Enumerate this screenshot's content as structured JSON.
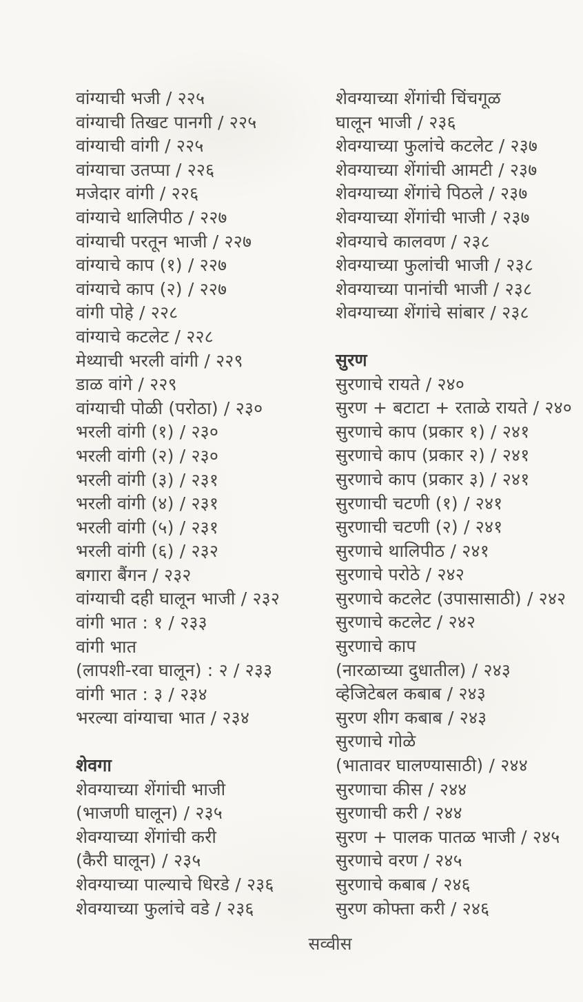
{
  "document": {
    "footer": "सव्वीस",
    "columns": [
      {
        "name": "left",
        "lines": [
          {
            "type": "entry",
            "text": "वांग्याची भजी / २२५"
          },
          {
            "type": "entry",
            "text": "वांग्याची तिखट पानगी / २२५"
          },
          {
            "type": "entry",
            "text": "वांग्याची वांगी / २२५"
          },
          {
            "type": "entry",
            "text": "वांग्याचा उतप्पा / २२६"
          },
          {
            "type": "entry",
            "text": "मजेदार वांगी / २२६"
          },
          {
            "type": "entry",
            "text": "वांग्याचे थालिपीठ / २२७"
          },
          {
            "type": "entry",
            "text": "वांग्याची परतून भाजी / २२७"
          },
          {
            "type": "entry",
            "text": "वांग्याचे काप (१) / २२७"
          },
          {
            "type": "entry",
            "text": "वांग्याचे काप (२) / २२७"
          },
          {
            "type": "entry",
            "text": "वांगी पोहे / २२८"
          },
          {
            "type": "entry",
            "text": "वांग्याचे कटलेट / २२८"
          },
          {
            "type": "entry",
            "text": "मेथ्याची भरली वांगी / २२९"
          },
          {
            "type": "entry",
            "text": "डाळ वांगे / २२९"
          },
          {
            "type": "entry",
            "text": "वांग्याची पोळी (परोठा) / २३०"
          },
          {
            "type": "entry",
            "text": "भरली वांगी (१) / २३०"
          },
          {
            "type": "entry",
            "text": "भरली वांगी (२) / २३०"
          },
          {
            "type": "entry",
            "text": "भरली वांगी (३) / २३१"
          },
          {
            "type": "entry",
            "text": "भरली वांगी (४) / २३१"
          },
          {
            "type": "entry",
            "text": "भरली वांगी (५) / २३१"
          },
          {
            "type": "entry",
            "text": "भरली वांगी (६) / २३२"
          },
          {
            "type": "entry",
            "text": "बगारा बैंगन / २३२"
          },
          {
            "type": "entry",
            "text": "वांग्याची दही घालून भाजी / २३२"
          },
          {
            "type": "entry",
            "text": "वांगी भात : १ / २३३"
          },
          {
            "type": "entry",
            "text": "वांगी भात"
          },
          {
            "type": "entry",
            "text": "(लापशी-रवा घालून) : २ / २३३"
          },
          {
            "type": "entry",
            "text": "वांगी भात : ३ / २३४"
          },
          {
            "type": "entry",
            "text": "भरल्या वांग्याचा भात / २३४"
          },
          {
            "type": "gap",
            "text": ""
          },
          {
            "type": "heading",
            "text": "शेवगा"
          },
          {
            "type": "entry",
            "text": "शेवग्याच्या शेंगांची भाजी"
          },
          {
            "type": "entry",
            "text": "(भाजणी घालून) / २३५"
          },
          {
            "type": "entry",
            "text": "शेवग्याच्या शेंगांची करी"
          },
          {
            "type": "entry",
            "text": "(कैरी घालून) / २३५"
          },
          {
            "type": "entry",
            "text": "शेवग्याच्या पाल्याचे धिरडे / २३६"
          },
          {
            "type": "entry",
            "text": "शेवग्याच्या फुलांचे वडे / २३६"
          }
        ]
      },
      {
        "name": "right",
        "lines": [
          {
            "type": "entry",
            "text": "शेवग्याच्या शेंगांची चिंचगूळ"
          },
          {
            "type": "entry",
            "text": "घालून भाजी / २३६"
          },
          {
            "type": "entry",
            "text": "शेवग्याच्या फुलांचे कटलेट / २३७"
          },
          {
            "type": "entry",
            "text": "शेवग्याच्या शेंगांची आमटी / २३७"
          },
          {
            "type": "entry",
            "text": "शेवग्याच्या शेंगांचे पिठले / २३७"
          },
          {
            "type": "entry",
            "text": "शेवग्याच्या शेंगांची भाजी / २३७"
          },
          {
            "type": "entry",
            "text": "शेवग्याचे कालवण / २३८"
          },
          {
            "type": "entry",
            "text": "शेवग्याच्या फुलांची भाजी / २३८"
          },
          {
            "type": "entry",
            "text": "शेवग्याच्या पानांची भाजी / २३८"
          },
          {
            "type": "entry",
            "text": "शेवग्याच्या शेंगांचे सांबार / २३८"
          },
          {
            "type": "gap",
            "text": ""
          },
          {
            "type": "heading",
            "text": "सुरण"
          },
          {
            "type": "entry",
            "text": "सुरणाचे रायते / २४०"
          },
          {
            "type": "entry",
            "text": "सुरण + बटाटा + रताळे रायते / २४०"
          },
          {
            "type": "entry",
            "text": "सुरणाचे काप (प्रकार १) / २४१"
          },
          {
            "type": "entry",
            "text": "सुरणाचे काप (प्रकार २) / २४१"
          },
          {
            "type": "entry",
            "text": "सुरणाचे काप (प्रकार ३) / २४१"
          },
          {
            "type": "entry",
            "text": "सुरणाची चटणी (१) / २४१"
          },
          {
            "type": "entry",
            "text": "सुरणाची चटणी (२) / २४१"
          },
          {
            "type": "entry",
            "text": "सुरणाचे थालिपीठ / २४१"
          },
          {
            "type": "entry",
            "text": "सुरणाचे परोठे / २४२"
          },
          {
            "type": "entry",
            "text": "सुरणाचे कटलेट (उपासासाठी) / २४२"
          },
          {
            "type": "entry",
            "text": "सुरणाचे कटलेट / २४२"
          },
          {
            "type": "entry",
            "text": "सुरणाचे काप"
          },
          {
            "type": "entry",
            "text": "(नारळाच्या दुधातील) / २४३"
          },
          {
            "type": "entry",
            "text": "व्हेजिटेबल कबाब / २४३"
          },
          {
            "type": "entry",
            "text": "सुरण शीग कबाब / २४३"
          },
          {
            "type": "entry",
            "text": "सुरणाचे गोळे"
          },
          {
            "type": "entry",
            "text": "(भातावर घालण्यासाठी) / २४४"
          },
          {
            "type": "entry",
            "text": "सुरणाचा कीस / २४४"
          },
          {
            "type": "entry",
            "text": "सुरणाची करी / २४४"
          },
          {
            "type": "entry",
            "text": "सुरण + पालक पातळ भाजी / २४५"
          },
          {
            "type": "entry",
            "text": "सुरणाचे वरण / २४५"
          },
          {
            "type": "entry",
            "text": "सुरणाचे कबाब / २४६"
          },
          {
            "type": "entry",
            "text": "सुरण कोफ्ता करी / २४६"
          }
        ]
      }
    ]
  }
}
